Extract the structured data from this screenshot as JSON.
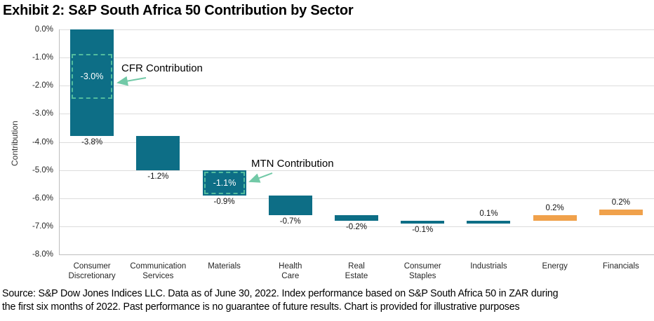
{
  "title": "Exhibit 2: S&P South Africa 50 Contribution by Sector",
  "source": [
    "Source: S&P Dow Jones Indices LLC. Data as of June 30, 2022. Index performance based on S&P South Africa 50 in ZAR during",
    "the first six months of 2022. Past performance is no guarantee of future results. Chart is provided for illustrative purposes"
  ],
  "colors": {
    "teal": "#0D6E86",
    "orange": "#F0A14B",
    "annotation_green": "#52BC9E",
    "arrow_green": "#72C9A7",
    "gridline": "#DCDCDC",
    "axis": "#BDBDBD"
  },
  "chart_data": {
    "type": "bar",
    "subtype": "waterfall",
    "title": "Exhibit 2: S&P South Africa 50 Contribution by Sector",
    "xlabel": "",
    "ylabel": "Contribution",
    "ylim": [
      -8.0,
      0.0
    ],
    "ytick_step": 1.0,
    "ytick_labels": [
      "0.0%",
      "-1.0%",
      "-2.0%",
      "-3.0%",
      "-4.0%",
      "-5.0%",
      "-6.0%",
      "-7.0%",
      "-8.0%"
    ],
    "grid": true,
    "legend": false,
    "categories": [
      [
        "Consumer",
        "Discretionary"
      ],
      [
        "Communication",
        "Services"
      ],
      [
        "Materials"
      ],
      [
        "Health",
        "Care"
      ],
      [
        "Real",
        "Estate"
      ],
      [
        "Consumer",
        "Staples"
      ],
      [
        "Industrials"
      ],
      [
        "Energy"
      ],
      [
        "Financials"
      ]
    ],
    "values": [
      -3.8,
      -1.2,
      -0.9,
      -0.7,
      -0.2,
      -0.1,
      0.1,
      0.2,
      0.2
    ],
    "bar_labels": [
      "-3.8%",
      "-1.2%",
      "-0.9%",
      "-0.7%",
      "-0.2%",
      "-0.1%",
      "0.1%",
      "0.2%",
      "0.2%"
    ],
    "bar_colors": [
      "teal",
      "teal",
      "teal",
      "teal",
      "teal",
      "teal",
      "teal",
      "orange",
      "orange"
    ],
    "annotations": [
      {
        "text": "CFR Contribution",
        "value_label": "-3.0%",
        "target_category": "Consumer Discretionary"
      },
      {
        "text": "MTN Contribution",
        "value_label": "-1.1%",
        "target_category": "Materials"
      }
    ]
  }
}
